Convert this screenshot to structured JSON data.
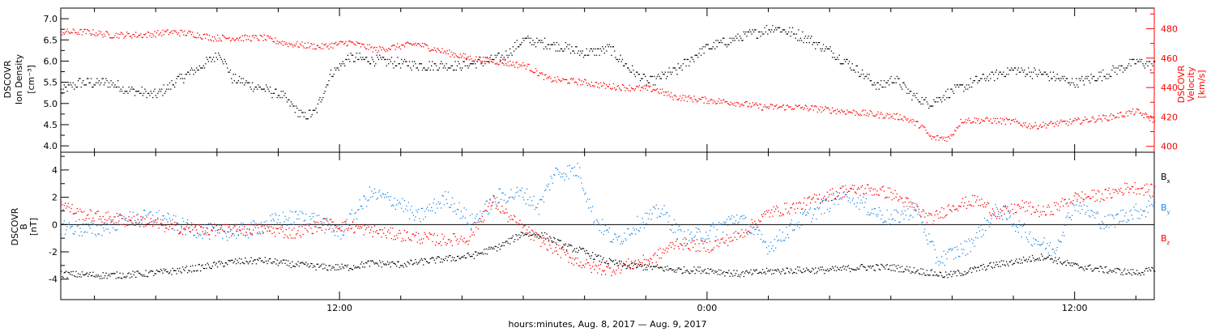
{
  "colors": {
    "black": "#000000",
    "red": "#ff0000",
    "blue": "#1e88e5"
  },
  "chart_data": [
    {
      "type": "scatter",
      "panel": "top",
      "ylabel_lines": [
        "DSCOVR",
        "Ion Density",
        "[cm⁻³]"
      ],
      "yticks": [
        "4.0",
        "4.5",
        "5.0",
        "5.5",
        "6.0",
        "6.5",
        "7.0"
      ],
      "ylim": [
        3.85,
        7.25
      ],
      "right_ylabel_lines": [
        "DSCOVR",
        "Velocity",
        "[km/s]"
      ],
      "right_yticks": [
        "400",
        "420",
        "440",
        "460",
        "480"
      ],
      "right_ylim": [
        396,
        494
      ],
      "x_hours_range": [
        2.9,
        38.6
      ],
      "series": [
        {
          "color": "black",
          "axis": "left",
          "keypoints": [
            [
              2.9,
              5.3
            ],
            [
              3.5,
              5.5
            ],
            [
              4.5,
              5.5
            ],
            [
              5,
              5.35
            ],
            [
              6,
              5.2
            ],
            [
              6.8,
              5.6
            ],
            [
              7.5,
              5.9
            ],
            [
              8.1,
              6.2
            ],
            [
              8.5,
              5.6
            ],
            [
              9.3,
              5.4
            ],
            [
              10.1,
              5.2
            ],
            [
              10.8,
              4.7
            ],
            [
              11.2,
              4.8
            ],
            [
              11.7,
              5.7
            ],
            [
              12.3,
              6.1
            ],
            [
              13.5,
              6.0
            ],
            [
              14.8,
              5.9
            ],
            [
              16,
              5.9
            ],
            [
              17.3,
              6.1
            ],
            [
              18,
              6.5
            ],
            [
              19,
              6.4
            ],
            [
              20,
              6.2
            ],
            [
              20.8,
              6.3
            ],
            [
              21.5,
              5.8
            ],
            [
              22.1,
              5.5
            ],
            [
              23,
              5.8
            ],
            [
              23.9,
              6.3
            ],
            [
              25.2,
              6.6
            ],
            [
              26.2,
              6.8
            ],
            [
              27.1,
              6.6
            ],
            [
              28.1,
              6.2
            ],
            [
              28.9,
              5.8
            ],
            [
              29.6,
              5.4
            ],
            [
              30.1,
              5.6
            ],
            [
              30.7,
              5.2
            ],
            [
              31.2,
              5.0
            ],
            [
              32,
              5.3
            ],
            [
              33,
              5.6
            ],
            [
              34,
              5.8
            ],
            [
              35,
              5.7
            ],
            [
              36,
              5.5
            ],
            [
              37,
              5.7
            ],
            [
              38,
              6.0
            ],
            [
              38.6,
              5.9
            ]
          ]
        },
        {
          "color": "red",
          "axis": "right",
          "keypoints": [
            [
              2.9,
              478
            ],
            [
              3.8,
              478
            ],
            [
              4.5,
              476
            ],
            [
              5.6,
              476
            ],
            [
              6.5,
              478
            ],
            [
              7.1,
              477
            ],
            [
              7.9,
              474
            ],
            [
              8.8,
              474
            ],
            [
              9.5,
              474
            ],
            [
              10.3,
              470
            ],
            [
              11.4,
              468
            ],
            [
              12.3,
              471
            ],
            [
              13.2,
              466
            ],
            [
              14.5,
              470
            ],
            [
              15.5,
              464
            ],
            [
              16.3,
              460
            ],
            [
              17.1,
              458
            ],
            [
              18.1,
              455
            ],
            [
              18.8,
              446
            ],
            [
              19.9,
              444
            ],
            [
              20.8,
              441
            ],
            [
              21.6,
              440
            ],
            [
              22.3,
              439
            ],
            [
              22.9,
              434
            ],
            [
              23.8,
              432
            ],
            [
              24.9,
              430
            ],
            [
              25.8,
              427
            ],
            [
              26.8,
              427
            ],
            [
              27.5,
              426
            ],
            [
              28.5,
              424
            ],
            [
              29.5,
              422
            ],
            [
              30.4,
              420
            ],
            [
              31.0,
              414
            ],
            [
              31.3,
              406
            ],
            [
              31.9,
              406
            ],
            [
              32.3,
              418
            ],
            [
              33.2,
              418
            ],
            [
              34.0,
              417
            ],
            [
              34.6,
              414
            ],
            [
              35.5,
              416
            ],
            [
              36.3,
              418
            ],
            [
              37.1,
              420
            ],
            [
              38.0,
              424
            ],
            [
              38.6,
              418
            ]
          ]
        }
      ]
    },
    {
      "type": "scatter",
      "panel": "bottom",
      "ylabel_lines": [
        "DSCOVR",
        "B",
        "[nT]"
      ],
      "yticks": [
        "-4",
        "-2",
        "0",
        "2",
        "4"
      ],
      "ylim": [
        -5.5,
        5.3
      ],
      "zero_line": true,
      "x_hours_range": [
        2.9,
        38.6
      ],
      "legend_placement": "right",
      "series": [
        {
          "name": "Bx",
          "color": "black",
          "keypoints": [
            [
              2.9,
              -3.6
            ],
            [
              4.5,
              -3.7
            ],
            [
              5.5,
              -3.6
            ],
            [
              6.5,
              -3.4
            ],
            [
              7.5,
              -3.1
            ],
            [
              8.5,
              -2.7
            ],
            [
              9.5,
              -2.6
            ],
            [
              10.5,
              -2.9
            ],
            [
              11.5,
              -3.1
            ],
            [
              12.3,
              -3.1
            ],
            [
              13,
              -2.8
            ],
            [
              14,
              -2.9
            ],
            [
              15,
              -2.6
            ],
            [
              15.8,
              -2.4
            ],
            [
              16.4,
              -2.2
            ],
            [
              17.2,
              -1.6
            ],
            [
              18,
              -0.6
            ],
            [
              18.7,
              -0.8
            ],
            [
              19.4,
              -1.6
            ],
            [
              19.9,
              -1.9
            ],
            [
              20.6,
              -2.6
            ],
            [
              21.4,
              -3.0
            ],
            [
              22.2,
              -3.1
            ],
            [
              23,
              -3.3
            ],
            [
              24,
              -3.3
            ],
            [
              25,
              -3.6
            ],
            [
              26,
              -3.4
            ],
            [
              27,
              -3.3
            ],
            [
              28,
              -3.3
            ],
            [
              29,
              -3.1
            ],
            [
              30,
              -3.1
            ],
            [
              31,
              -3.4
            ],
            [
              31.8,
              -3.7
            ],
            [
              32.5,
              -3.4
            ],
            [
              33.2,
              -3.0
            ],
            [
              34,
              -2.7
            ],
            [
              35,
              -2.3
            ],
            [
              36,
              -3.0
            ],
            [
              37,
              -3.3
            ],
            [
              38,
              -3.5
            ],
            [
              38.6,
              -3.3
            ]
          ]
        },
        {
          "name": "By",
          "color": "blue",
          "keypoints": [
            [
              2.9,
              -0.1
            ],
            [
              4,
              -0.4
            ],
            [
              5,
              0.4
            ],
            [
              6,
              0.6
            ],
            [
              7,
              -0.2
            ],
            [
              8,
              -0.6
            ],
            [
              9,
              -0.4
            ],
            [
              10,
              0.4
            ],
            [
              11,
              0.6
            ],
            [
              12,
              -0.6
            ],
            [
              13,
              2.3
            ],
            [
              14,
              1.6
            ],
            [
              14.5,
              0.5
            ],
            [
              15.5,
              2.0
            ],
            [
              16.3,
              0.2
            ],
            [
              17.2,
              2.1
            ],
            [
              18,
              2.3
            ],
            [
              18.5,
              1.3
            ],
            [
              19,
              3.8
            ],
            [
              19.8,
              4.0
            ],
            [
              20.3,
              0.5
            ],
            [
              21,
              -1.2
            ],
            [
              21.8,
              0.2
            ],
            [
              22.5,
              1.1
            ],
            [
              23.2,
              -1.0
            ],
            [
              24,
              -0.6
            ],
            [
              25,
              0.6
            ],
            [
              26,
              -1.6
            ],
            [
              27,
              0.3
            ],
            [
              28,
              1.6
            ],
            [
              28.5,
              2.5
            ],
            [
              29.2,
              1.3
            ],
            [
              30,
              0.4
            ],
            [
              30.8,
              1.2
            ],
            [
              31.5,
              -2.6
            ],
            [
              32.5,
              -1.6
            ],
            [
              33.5,
              1.2
            ],
            [
              34.5,
              -0.8
            ],
            [
              35.3,
              -1.9
            ],
            [
              36,
              1.6
            ],
            [
              37,
              0.1
            ],
            [
              37.8,
              0.9
            ],
            [
              38.3,
              1.1
            ],
            [
              38.6,
              1.9
            ]
          ]
        },
        {
          "name": "Bz",
          "color": "red",
          "keypoints": [
            [
              2.9,
              1.6
            ],
            [
              3.5,
              0.8
            ],
            [
              4.5,
              0.5
            ],
            [
              5.5,
              0.3
            ],
            [
              6.5,
              -0.2
            ],
            [
              7.5,
              -0.3
            ],
            [
              8.5,
              -0.4
            ],
            [
              9.5,
              -0.3
            ],
            [
              10.5,
              -0.6
            ],
            [
              11.5,
              0.1
            ],
            [
              12.5,
              -0.2
            ],
            [
              13.5,
              -0.6
            ],
            [
              14.5,
              -0.9
            ],
            [
              15.3,
              -1.1
            ],
            [
              16.2,
              -1.0
            ],
            [
              17.0,
              1.8
            ],
            [
              17.5,
              0.6
            ],
            [
              18.3,
              -0.8
            ],
            [
              19,
              -1.7
            ],
            [
              19.6,
              -2.5
            ],
            [
              20.2,
              -3.1
            ],
            [
              20.8,
              -3.3
            ],
            [
              21.6,
              -2.8
            ],
            [
              22.2,
              -2.5
            ],
            [
              23,
              -1.3
            ],
            [
              24,
              -1.6
            ],
            [
              25,
              -0.8
            ],
            [
              26,
              0.9
            ],
            [
              27,
              1.4
            ],
            [
              27.8,
              2.1
            ],
            [
              28.5,
              2.5
            ],
            [
              29.3,
              2.6
            ],
            [
              30,
              2.3
            ],
            [
              30.6,
              1.5
            ],
            [
              31.3,
              0.4
            ],
            [
              32,
              1.4
            ],
            [
              32.8,
              1.8
            ],
            [
              33.5,
              0.8
            ],
            [
              34.3,
              1.4
            ],
            [
              35,
              0.9
            ],
            [
              36,
              2.0
            ],
            [
              37,
              2.2
            ],
            [
              37.8,
              2.8
            ],
            [
              38.6,
              2.5
            ]
          ]
        }
      ]
    }
  ],
  "legend": {
    "bx": "B",
    "bx_sub": "x",
    "by": "B",
    "by_sub": "y",
    "bz": "B",
    "bz_sub": "z"
  },
  "xaxis": {
    "ticks": [
      {
        "hour": 12,
        "label": "12:00"
      },
      {
        "hour": 24,
        "label": "0:00"
      },
      {
        "hour": 36,
        "label": "12:00"
      }
    ],
    "minor_every_hours": 2,
    "range_hours": [
      2.9,
      38.6
    ],
    "label": "hours:minutes, Aug.  8, 2017 — Aug.  9, 2017"
  }
}
